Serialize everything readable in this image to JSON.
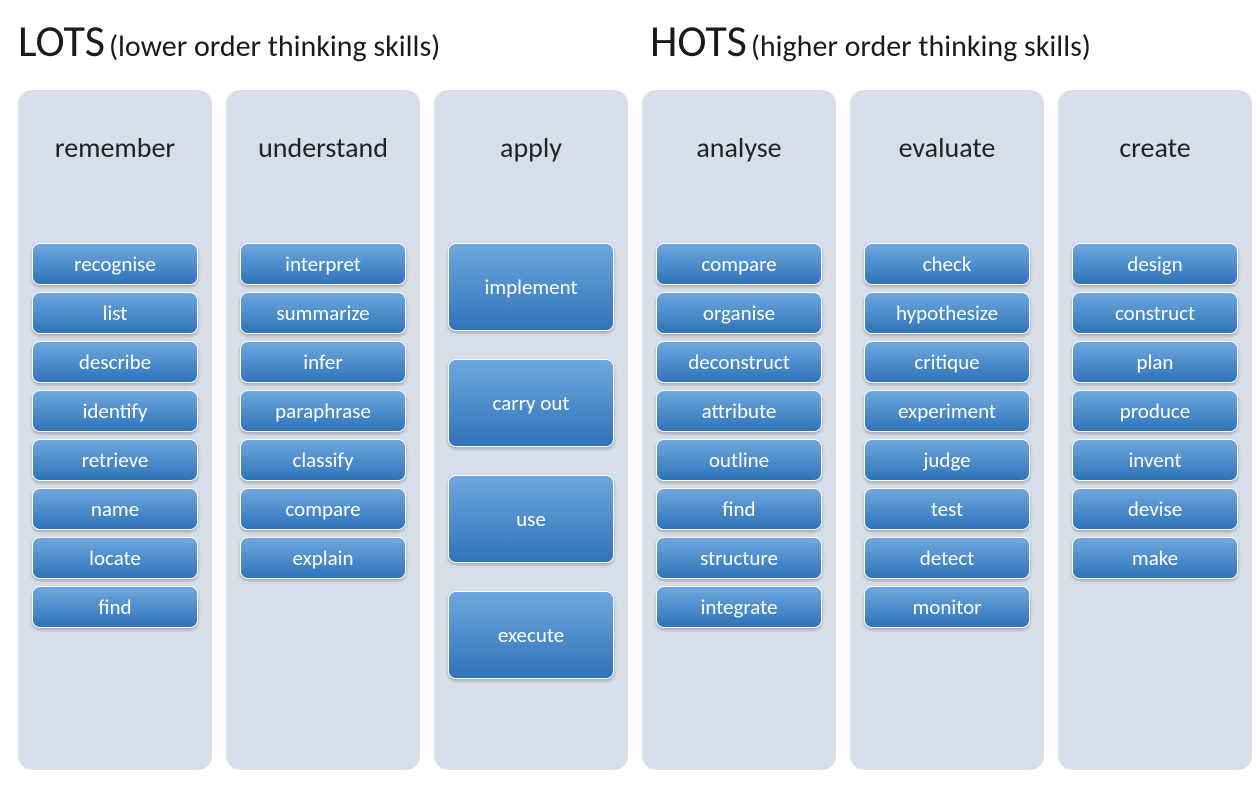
{
  "headers": {
    "left_big": "LOTS",
    "left_sub": "(lower order thinking skills)",
    "right_big": "HOTS",
    "right_sub": "(higher order thinking skills)"
  },
  "style": {
    "col_bg": "#d8dee8",
    "pill_gradient_top": "#6fa8df",
    "pill_gradient_bottom": "#2e73b8",
    "pill_text_color": "#ffffff",
    "title_color": "#222222",
    "header_color": "#1a1a1a",
    "pill_height_short": 42,
    "pill_height_tall": 88,
    "pill_gap_short": 7,
    "pill_gap_tall": 28,
    "pill_width": 166,
    "pill_radius": 8,
    "col_radius": 14
  },
  "columns": [
    {
      "title": "remember",
      "pill_size": "short",
      "items": [
        "recognise",
        "list",
        "describe",
        "identify",
        "retrieve",
        "name",
        "locate",
        "find"
      ]
    },
    {
      "title": "understand",
      "pill_size": "short",
      "items": [
        "interpret",
        "summarize",
        "infer",
        "paraphrase",
        "classify",
        "compare",
        "explain"
      ]
    },
    {
      "title": "apply",
      "pill_size": "tall",
      "items": [
        "implement",
        "carry out",
        "use",
        "execute"
      ]
    },
    {
      "title": "analyse",
      "pill_size": "short",
      "items": [
        "compare",
        "organise",
        "deconstruct",
        "attribute",
        "outline",
        "find",
        "structure",
        "integrate"
      ]
    },
    {
      "title": "evaluate",
      "pill_size": "short",
      "items": [
        "check",
        "hypothesize",
        "critique",
        "experiment",
        "judge",
        "test",
        "detect",
        "monitor"
      ]
    },
    {
      "title": "create",
      "pill_size": "short",
      "items": [
        "design",
        "construct",
        "plan",
        "produce",
        "invent",
        "devise",
        "make"
      ]
    }
  ]
}
